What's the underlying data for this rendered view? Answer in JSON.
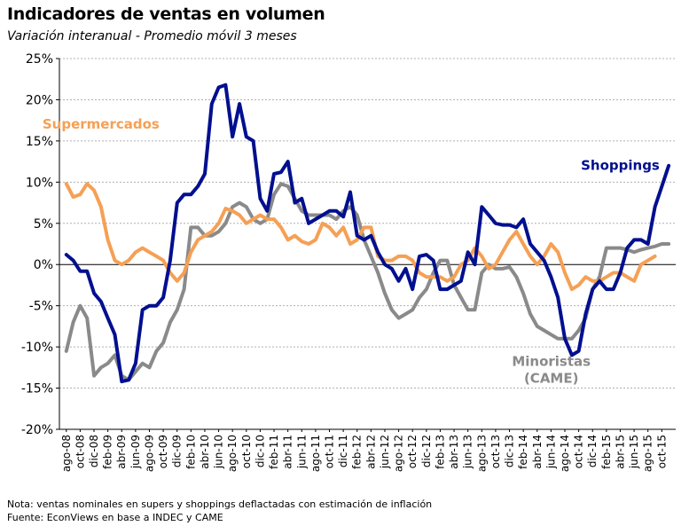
{
  "title": "Indicadores de ventas en volumen",
  "subtitle": "Variación interanual - Promedio móvil 3 meses",
  "note": "Nota: ventas nominales en supers y shoppings deflactadas con estimación de inflación",
  "source": "Fuente: EconViews en base a INDEC y CAME",
  "colors": {
    "shoppings": "#000f8f",
    "supermercados": "#f5a055",
    "minoristas": "#8a8a8a",
    "grid": "#b0b0b0",
    "axis": "#000000"
  },
  "chart_data": {
    "type": "line",
    "y_unit": "%",
    "ylim": [
      -20,
      25
    ],
    "yticks": [
      "25%",
      "20%",
      "15%",
      "10%",
      "5%",
      "0%",
      "-5%",
      "-10%",
      "-15%",
      "-20%"
    ],
    "grid": "horizontal",
    "x": [
      "ago-08",
      "oct-08",
      "dic-08",
      "feb-09",
      "abr-09",
      "jun-09",
      "ago-09",
      "oct-09",
      "dic-09",
      "feb-10",
      "abr-10",
      "jun-10",
      "ago-10",
      "oct-10",
      "dic-10",
      "feb-11",
      "abr-11",
      "jun-11",
      "ago-11",
      "oct-11",
      "dic-11",
      "feb-12",
      "abr-12",
      "jun-12",
      "ago-12",
      "oct-12",
      "dic-12",
      "feb-13",
      "abr-13",
      "jun-13",
      "ago-13",
      "oct-13",
      "dic-13",
      "feb-14",
      "abr-14",
      "jun-14",
      "ago-14",
      "oct-14",
      "dic-14",
      "feb-15",
      "abr-15",
      "jun-15",
      "ago-15",
      "oct-15"
    ],
    "series": [
      {
        "name": "Shoppings",
        "key": "shoppings",
        "label_pos": [
          2015.25,
          11.5
        ],
        "points": [
          [
            2008.583,
            1.2
          ],
          [
            2008.667,
            0.5
          ],
          [
            2008.75,
            -0.8
          ],
          [
            2008.833,
            -0.8
          ],
          [
            2008.917,
            -3.5
          ],
          [
            2009.0,
            -4.5
          ],
          [
            2009.083,
            -6.5
          ],
          [
            2009.167,
            -8.5
          ],
          [
            2009.25,
            -14.2
          ],
          [
            2009.333,
            -14.0
          ],
          [
            2009.417,
            -12.0
          ],
          [
            2009.5,
            -5.5
          ],
          [
            2009.583,
            -5.0
          ],
          [
            2009.667,
            -5.0
          ],
          [
            2009.75,
            -4.0
          ],
          [
            2009.833,
            0.5
          ],
          [
            2009.917,
            7.5
          ],
          [
            2010.0,
            8.5
          ],
          [
            2010.083,
            8.5
          ],
          [
            2010.167,
            9.5
          ],
          [
            2010.25,
            11.0
          ],
          [
            2010.333,
            19.5
          ],
          [
            2010.417,
            21.5
          ],
          [
            2010.5,
            21.8
          ],
          [
            2010.583,
            15.5
          ],
          [
            2010.667,
            19.5
          ],
          [
            2010.75,
            15.5
          ],
          [
            2010.833,
            15.0
          ],
          [
            2010.917,
            8.0
          ],
          [
            2011.0,
            6.5
          ],
          [
            2011.083,
            11.0
          ],
          [
            2011.167,
            11.2
          ],
          [
            2011.25,
            12.5
          ],
          [
            2011.333,
            7.5
          ],
          [
            2011.417,
            8.0
          ],
          [
            2011.5,
            5.0
          ],
          [
            2011.583,
            5.5
          ],
          [
            2011.667,
            6.0
          ],
          [
            2011.75,
            6.5
          ],
          [
            2011.833,
            6.5
          ],
          [
            2011.917,
            5.8
          ],
          [
            2012.0,
            8.8
          ],
          [
            2012.083,
            3.5
          ],
          [
            2012.167,
            3.0
          ],
          [
            2012.25,
            3.5
          ],
          [
            2012.333,
            1.5
          ],
          [
            2012.417,
            0.0
          ],
          [
            2012.5,
            -0.5
          ],
          [
            2012.583,
            -2.0
          ],
          [
            2012.667,
            -0.5
          ],
          [
            2012.75,
            -3.0
          ],
          [
            2012.833,
            1.0
          ],
          [
            2012.917,
            1.2
          ],
          [
            2013.0,
            0.5
          ],
          [
            2013.083,
            -3.0
          ],
          [
            2013.167,
            -3.0
          ],
          [
            2013.25,
            -2.5
          ],
          [
            2013.333,
            -2.0
          ],
          [
            2013.417,
            1.5
          ],
          [
            2013.5,
            0.0
          ],
          [
            2013.583,
            7.0
          ],
          [
            2013.667,
            6.0
          ],
          [
            2013.75,
            5.0
          ],
          [
            2013.833,
            4.8
          ],
          [
            2013.917,
            4.8
          ],
          [
            2014.0,
            4.5
          ],
          [
            2014.083,
            5.5
          ],
          [
            2014.167,
            2.5
          ],
          [
            2014.25,
            1.5
          ],
          [
            2014.333,
            0.5
          ],
          [
            2014.417,
            -1.5
          ],
          [
            2014.5,
            -4.0
          ],
          [
            2014.583,
            -9.0
          ],
          [
            2014.667,
            -11.0
          ],
          [
            2014.75,
            -10.5
          ],
          [
            2014.833,
            -6.0
          ],
          [
            2014.917,
            -3.0
          ],
          [
            2015.0,
            -2.0
          ],
          [
            2015.083,
            -3.0
          ],
          [
            2015.167,
            -3.0
          ],
          [
            2015.25,
            -1.0
          ],
          [
            2015.333,
            2.0
          ],
          [
            2015.417,
            3.0
          ],
          [
            2015.5,
            3.0
          ],
          [
            2015.583,
            2.5
          ],
          [
            2015.667,
            7.0
          ],
          [
            2015.75,
            9.5
          ],
          [
            2015.833,
            12.0
          ]
        ]
      },
      {
        "name": "Supermercados",
        "key": "supermercados",
        "label_pos": [
          2009.0,
          16.5
        ],
        "points": [
          [
            2008.583,
            9.8
          ],
          [
            2008.667,
            8.2
          ],
          [
            2008.75,
            8.5
          ],
          [
            2008.833,
            9.8
          ],
          [
            2008.917,
            9.0
          ],
          [
            2009.0,
            7.0
          ],
          [
            2009.083,
            3.0
          ],
          [
            2009.167,
            0.5
          ],
          [
            2009.25,
            0.0
          ],
          [
            2009.333,
            0.5
          ],
          [
            2009.417,
            1.5
          ],
          [
            2009.5,
            2.0
          ],
          [
            2009.583,
            1.5
          ],
          [
            2009.667,
            1.0
          ],
          [
            2009.75,
            0.5
          ],
          [
            2009.833,
            -1.0
          ],
          [
            2009.917,
            -2.0
          ],
          [
            2010.0,
            -1.0
          ],
          [
            2010.083,
            1.5
          ],
          [
            2010.167,
            3.0
          ],
          [
            2010.25,
            3.5
          ],
          [
            2010.333,
            4.0
          ],
          [
            2010.417,
            5.0
          ],
          [
            2010.5,
            6.8
          ],
          [
            2010.583,
            6.5
          ],
          [
            2010.667,
            6.0
          ],
          [
            2010.75,
            5.0
          ],
          [
            2010.833,
            5.5
          ],
          [
            2010.917,
            6.0
          ],
          [
            2011.0,
            5.5
          ],
          [
            2011.083,
            5.5
          ],
          [
            2011.167,
            4.5
          ],
          [
            2011.25,
            3.0
          ],
          [
            2011.333,
            3.5
          ],
          [
            2011.417,
            2.8
          ],
          [
            2011.5,
            2.5
          ],
          [
            2011.583,
            3.0
          ],
          [
            2011.667,
            5.0
          ],
          [
            2011.75,
            4.5
          ],
          [
            2011.833,
            3.5
          ],
          [
            2011.917,
            4.5
          ],
          [
            2012.0,
            2.5
          ],
          [
            2012.083,
            3.0
          ],
          [
            2012.167,
            4.5
          ],
          [
            2012.25,
            4.5
          ],
          [
            2012.333,
            1.0
          ],
          [
            2012.417,
            0.5
          ],
          [
            2012.5,
            0.5
          ],
          [
            2012.583,
            1.0
          ],
          [
            2012.667,
            1.0
          ],
          [
            2012.75,
            0.5
          ],
          [
            2012.833,
            -1.0
          ],
          [
            2012.917,
            -1.5
          ],
          [
            2013.0,
            -1.5
          ],
          [
            2013.083,
            -1.5
          ],
          [
            2013.167,
            -2.0
          ],
          [
            2013.25,
            -1.5
          ],
          [
            2013.333,
            0.0
          ],
          [
            2013.417,
            0.5
          ],
          [
            2013.5,
            2.0
          ],
          [
            2013.583,
            1.0
          ],
          [
            2013.667,
            -0.5
          ],
          [
            2013.75,
            0.0
          ],
          [
            2013.833,
            1.5
          ],
          [
            2013.917,
            3.0
          ],
          [
            2014.0,
            4.0
          ],
          [
            2014.083,
            2.5
          ],
          [
            2014.167,
            1.0
          ],
          [
            2014.25,
            0.0
          ],
          [
            2014.333,
            1.0
          ],
          [
            2014.417,
            2.5
          ],
          [
            2014.5,
            1.5
          ],
          [
            2014.583,
            -1.0
          ],
          [
            2014.667,
            -3.0
          ],
          [
            2014.75,
            -2.5
          ],
          [
            2014.833,
            -1.5
          ],
          [
            2014.917,
            -2.0
          ],
          [
            2015.0,
            -2.0
          ],
          [
            2015.083,
            -1.5
          ],
          [
            2015.167,
            -1.0
          ],
          [
            2015.25,
            -1.0
          ],
          [
            2015.333,
            -1.5
          ],
          [
            2015.417,
            -2.0
          ],
          [
            2015.5,
            0.0
          ],
          [
            2015.583,
            0.5
          ],
          [
            2015.667,
            1.0
          ]
        ]
      },
      {
        "name": "Minoristas (CAME)",
        "label_lines": [
          "Minoristas",
          "(CAME)"
        ],
        "key": "minoristas",
        "label_pos": [
          2014.42,
          -12.3
        ],
        "points": [
          [
            2008.583,
            -10.5
          ],
          [
            2008.667,
            -7.0
          ],
          [
            2008.75,
            -5.0
          ],
          [
            2008.833,
            -6.5
          ],
          [
            2008.917,
            -13.5
          ],
          [
            2009.0,
            -12.5
          ],
          [
            2009.083,
            -12.0
          ],
          [
            2009.167,
            -11.0
          ],
          [
            2009.25,
            -13.5
          ],
          [
            2009.333,
            -14.0
          ],
          [
            2009.417,
            -13.0
          ],
          [
            2009.5,
            -12.0
          ],
          [
            2009.583,
            -12.5
          ],
          [
            2009.667,
            -10.5
          ],
          [
            2009.75,
            -9.5
          ],
          [
            2009.833,
            -7.0
          ],
          [
            2009.917,
            -5.5
          ],
          [
            2010.0,
            -3.0
          ],
          [
            2010.083,
            4.5
          ],
          [
            2010.167,
            4.5
          ],
          [
            2010.25,
            3.5
          ],
          [
            2010.333,
            3.5
          ],
          [
            2010.417,
            4.0
          ],
          [
            2010.5,
            5.0
          ],
          [
            2010.583,
            7.0
          ],
          [
            2010.667,
            7.5
          ],
          [
            2010.75,
            7.0
          ],
          [
            2010.833,
            5.5
          ],
          [
            2010.917,
            5.0
          ],
          [
            2011.0,
            5.5
          ],
          [
            2011.083,
            8.5
          ],
          [
            2011.167,
            9.8
          ],
          [
            2011.25,
            9.5
          ],
          [
            2011.333,
            8.0
          ],
          [
            2011.417,
            6.5
          ],
          [
            2011.5,
            6.0
          ],
          [
            2011.583,
            6.0
          ],
          [
            2011.667,
            6.0
          ],
          [
            2011.75,
            6.0
          ],
          [
            2011.833,
            5.5
          ],
          [
            2011.917,
            6.5
          ],
          [
            2012.0,
            7.0
          ],
          [
            2012.083,
            6.0
          ],
          [
            2012.167,
            3.0
          ],
          [
            2012.25,
            1.0
          ],
          [
            2012.333,
            -1.0
          ],
          [
            2012.417,
            -3.5
          ],
          [
            2012.5,
            -5.5
          ],
          [
            2012.583,
            -6.5
          ],
          [
            2012.667,
            -6.0
          ],
          [
            2012.75,
            -5.5
          ],
          [
            2012.833,
            -4.0
          ],
          [
            2012.917,
            -3.0
          ],
          [
            2013.0,
            -1.0
          ],
          [
            2013.083,
            0.5
          ],
          [
            2013.167,
            0.5
          ],
          [
            2013.25,
            -2.5
          ],
          [
            2013.333,
            -4.0
          ],
          [
            2013.417,
            -5.5
          ],
          [
            2013.5,
            -5.5
          ],
          [
            2013.583,
            -1.0
          ],
          [
            2013.667,
            0.0
          ],
          [
            2013.75,
            -0.5
          ],
          [
            2013.833,
            -0.5
          ],
          [
            2013.917,
            -0.3
          ],
          [
            2014.0,
            -1.5
          ],
          [
            2014.083,
            -3.5
          ],
          [
            2014.167,
            -6.0
          ],
          [
            2014.25,
            -7.5
          ],
          [
            2014.333,
            -8.0
          ],
          [
            2014.417,
            -8.5
          ],
          [
            2014.5,
            -9.0
          ],
          [
            2014.583,
            -9.0
          ],
          [
            2014.667,
            -9.0
          ],
          [
            2014.75,
            -8.0
          ],
          [
            2014.833,
            -6.5
          ],
          [
            2014.917,
            -3.0
          ],
          [
            2015.0,
            -1.5
          ],
          [
            2015.083,
            2.0
          ],
          [
            2015.167,
            2.0
          ],
          [
            2015.25,
            2.0
          ],
          [
            2015.333,
            1.8
          ],
          [
            2015.417,
            1.5
          ],
          [
            2015.5,
            1.8
          ],
          [
            2015.583,
            2.0
          ],
          [
            2015.667,
            2.2
          ],
          [
            2015.75,
            2.5
          ],
          [
            2015.833,
            2.5
          ]
        ]
      }
    ]
  }
}
